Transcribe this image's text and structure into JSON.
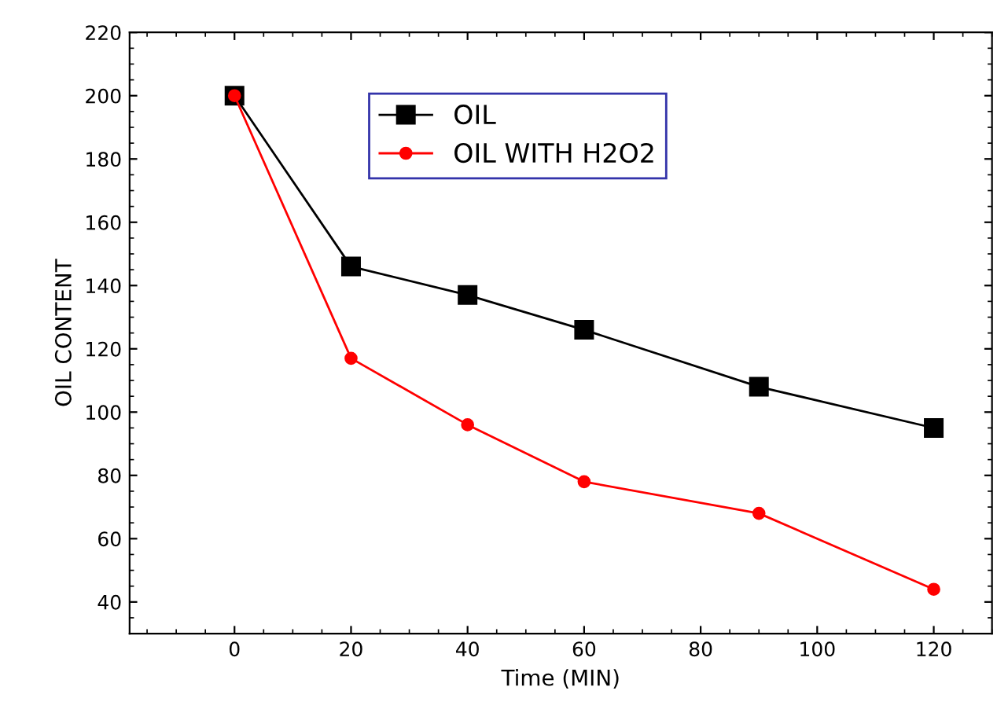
{
  "chart_data": {
    "type": "line",
    "xlabel": "Time (MIN)",
    "ylabel": "OIL CONTENT",
    "x": [
      0,
      20,
      40,
      60,
      90,
      120
    ],
    "series": [
      {
        "name": "OIL",
        "color": "#000000",
        "marker": "square",
        "values": [
          200,
          146,
          137,
          126,
          108,
          95
        ]
      },
      {
        "name": "OIL WITH H2O2",
        "color": "#ff0000",
        "marker": "circle",
        "values": [
          200,
          117,
          96,
          78,
          68,
          44
        ]
      }
    ],
    "xlim": [
      -18,
      130
    ],
    "ylim": [
      30,
      220
    ],
    "xticks": [
      0,
      20,
      40,
      60,
      80,
      100,
      120
    ],
    "yticks": [
      40,
      60,
      80,
      100,
      120,
      140,
      160,
      180,
      200,
      220
    ],
    "legend": "top",
    "grid": false,
    "line_style": "solid"
  }
}
